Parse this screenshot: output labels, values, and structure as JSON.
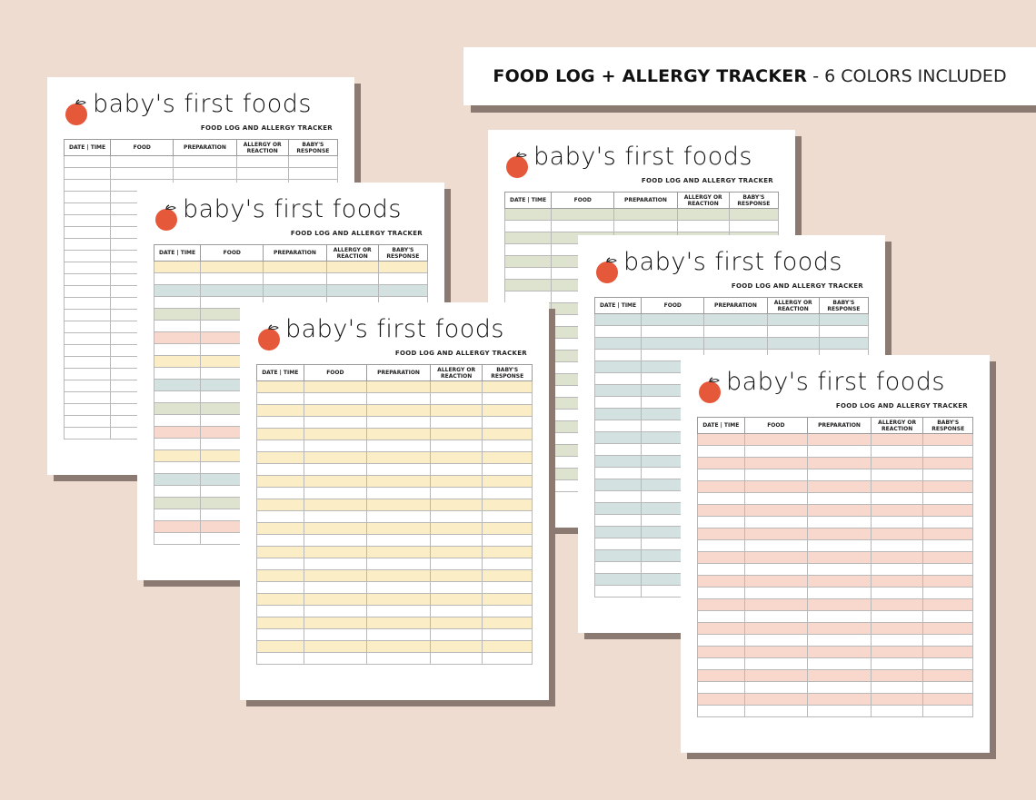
{
  "banner": {
    "title_bold": "FOOD LOG + ALLERGY TRACKER",
    "title_light": "- 6 COLORS INCLUDED"
  },
  "sheet_title": "baby's first foods",
  "sheet_subtitle": "FOOD LOG AND ALLERGY TRACKER",
  "columns": [
    "DATE | TIME",
    "FOOD",
    "PREPARATION",
    "ALLERGY OR REACTION",
    "BABY'S RESPONSE"
  ],
  "colors": {
    "background": "#efdcd1",
    "yellow": "#fbedc6",
    "blue": "#d3e2e1",
    "green": "#dde3cf",
    "pink": "#f8d7cd",
    "white": "#ffffff",
    "orange": "#e6583a"
  },
  "sheets": [
    {
      "name": "white",
      "stripe": [
        "white"
      ]
    },
    {
      "name": "multicolor",
      "stripe": [
        "yellow",
        "white",
        "blue",
        "white",
        "green",
        "white",
        "pink",
        "white"
      ]
    },
    {
      "name": "yellow",
      "stripe": [
        "yellow",
        "white"
      ]
    },
    {
      "name": "green",
      "stripe": [
        "green",
        "white"
      ]
    },
    {
      "name": "blue",
      "stripe": [
        "blue",
        "white"
      ]
    },
    {
      "name": "pink",
      "stripe": [
        "pink",
        "white"
      ]
    }
  ]
}
